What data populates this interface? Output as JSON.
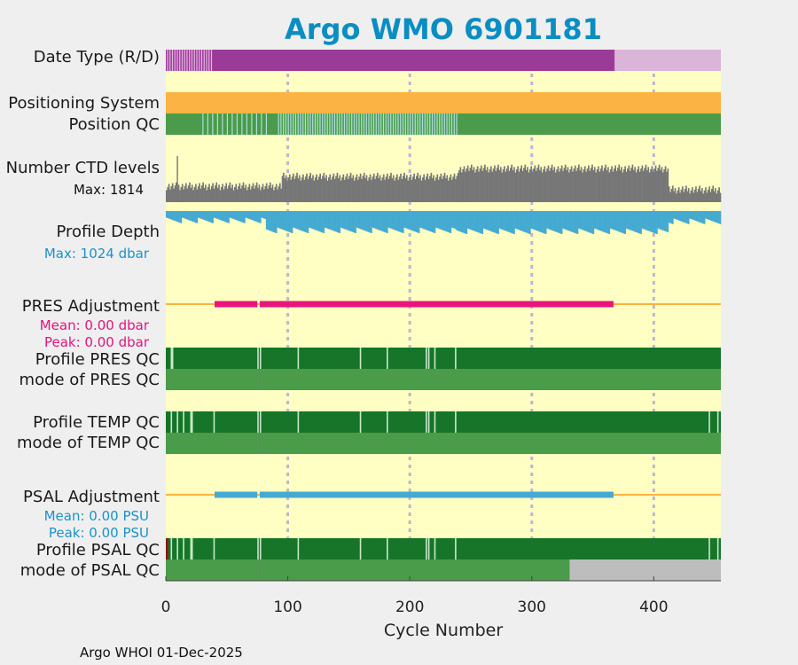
{
  "chart_data": {
    "type": "bar",
    "title": "Argo WMO 6901181",
    "xlabel": "Cycle Number",
    "xlim": [
      0,
      455
    ],
    "xticks": [
      "0",
      "100",
      "200",
      "300",
      "400"
    ],
    "xtick_values": [
      0,
      100,
      200,
      300,
      400
    ],
    "gridlines": [
      100,
      200,
      300,
      400
    ],
    "footer": "Argo WHOI 01-Dec-2025",
    "rows": [
      {
        "key": "date_type",
        "label": "Date Type (R/D)",
        "segments": [
          {
            "from": 0,
            "to": 368,
            "color": "#9b3b98"
          },
          {
            "from": 368,
            "to": 455,
            "color": "#dbb4d9"
          }
        ],
        "ticks": {
          "from": 1,
          "to": 37,
          "step": 2,
          "color": "#e6b5e0"
        }
      },
      {
        "key": "positioning",
        "label": "Positioning System",
        "segments": [
          {
            "from": 0,
            "to": 455,
            "color": "#fbb343"
          }
        ]
      },
      {
        "key": "position_qc",
        "label": "Position QC",
        "segments": [
          {
            "from": 0,
            "to": 455,
            "color": "#4a9b4a"
          }
        ],
        "ticks_range": [
          {
            "from": 92,
            "to": 238,
            "step": 2,
            "color": "#aedfdc"
          },
          {
            "from": 30,
            "to": 82,
            "step": 4,
            "color": "#aedfdc"
          }
        ]
      },
      {
        "key": "ctd_levels",
        "label": "Number CTD levels",
        "sublabel": "Max: 1814",
        "levels": [
          {
            "from": 0,
            "to": 95,
            "frac": 0.25
          },
          {
            "from": 95,
            "to": 240,
            "frac": 0.45
          },
          {
            "from": 240,
            "to": 412,
            "frac": 0.62
          },
          {
            "from": 412,
            "to": 455,
            "frac": 0.18
          }
        ],
        "color": "#777777"
      },
      {
        "key": "profile_depth",
        "label": "Profile Depth",
        "sublabel": "Max: 1024 dbar",
        "depths": [
          {
            "from": 0,
            "to": 82,
            "frac": 0.22
          },
          {
            "from": 82,
            "to": 238,
            "frac": 0.55
          },
          {
            "from": 238,
            "to": 412,
            "frac": 0.58
          },
          {
            "from": 412,
            "to": 455,
            "frac": 0.25
          }
        ],
        "color": "#45aad2"
      },
      {
        "key": "pres_adj",
        "label": "PRES Adjustment",
        "sublabel1": "Mean: 0.00 dbar",
        "sublabel2": "Peak: 0.00 dbar",
        "line_color": "#fbb343",
        "bar_color": "#e8157e",
        "bars": [
          {
            "from": 40,
            "to": 75
          },
          {
            "from": 77,
            "to": 367
          }
        ]
      },
      {
        "key": "pres_qc",
        "label": "Profile PRES QC",
        "segments": [
          {
            "from": 0,
            "to": 455,
            "color": "#167529"
          }
        ],
        "ticks_list": [
          4,
          5,
          75,
          77,
          108,
          159,
          181,
          213,
          215,
          220,
          237
        ],
        "tick_color": "#c8e8c8"
      },
      {
        "key": "pres_mode",
        "label": "mode of PRES QC",
        "segments": [
          {
            "from": 0,
            "to": 455,
            "color": "#4a9b4a"
          }
        ]
      },
      {
        "key": "temp_qc",
        "label": "Profile TEMP QC",
        "segments": [
          {
            "from": 0,
            "to": 455,
            "color": "#167529"
          }
        ],
        "ticks_list": [
          4,
          9,
          14,
          20,
          21,
          39,
          75,
          77,
          108,
          159,
          181,
          213,
          215,
          220,
          237,
          445,
          452
        ],
        "tick_color": "#c8e8c8"
      },
      {
        "key": "temp_mode",
        "label": "mode of TEMP QC",
        "segments": [
          {
            "from": 0,
            "to": 455,
            "color": "#4a9b4a"
          }
        ]
      },
      {
        "key": "psal_adj",
        "label": "PSAL Adjustment",
        "sublabel1": "Mean: 0.00 PSU",
        "sublabel2": "Peak: 0.00 PSU",
        "line_color": "#fbb343",
        "bar_color": "#45aad2",
        "bars": [
          {
            "from": 40,
            "to": 75
          },
          {
            "from": 77,
            "to": 367
          }
        ]
      },
      {
        "key": "psal_qc",
        "label": "Profile PSAL QC",
        "segments": [
          {
            "from": 0,
            "to": 455,
            "color": "#167529"
          },
          {
            "from": 0,
            "to": 2,
            "color": "#8b1a1a"
          }
        ],
        "ticks_list": [
          4,
          9,
          14,
          20,
          21,
          39,
          75,
          77,
          108,
          159,
          181,
          213,
          215,
          220,
          237,
          445,
          452
        ],
        "tick_color": "#c8e8c8"
      },
      {
        "key": "psal_mode",
        "label": "mode of PSAL QC",
        "segments": [
          {
            "from": 0,
            "to": 455,
            "color": "#4a9b4a"
          },
          {
            "from": 331,
            "to": 455,
            "color": "#bdbdbd"
          }
        ]
      }
    ]
  },
  "colors": {
    "plot_bg": "#ffffc4",
    "grid": "#b8b8d0",
    "page_bg": "#efefef",
    "title": "#0a8ec2",
    "sub_magenta": "#e0157a",
    "sub_blue": "#1b92c8"
  }
}
